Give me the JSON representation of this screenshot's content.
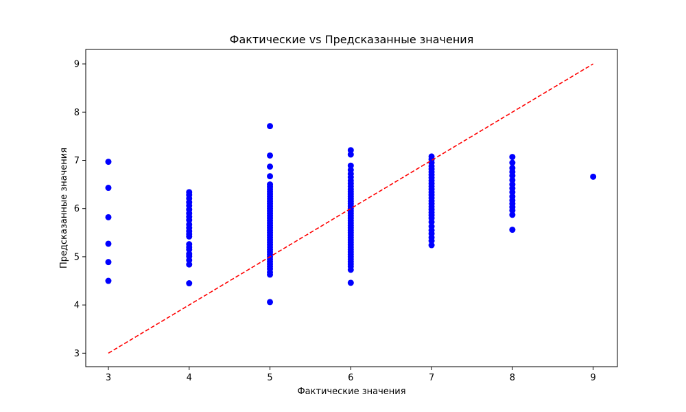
{
  "chart_data": {
    "type": "scatter",
    "title": "Фактические vs Предсказанные значения",
    "xlabel": "Фактические значения",
    "ylabel": "Предсказанные значения",
    "xlim": [
      2.72,
      9.3
    ],
    "ylim": [
      2.72,
      9.3
    ],
    "xticks": [
      "3",
      "4",
      "5",
      "6",
      "7",
      "8",
      "9"
    ],
    "yticks": [
      "3",
      "4",
      "5",
      "6",
      "7",
      "8",
      "9"
    ],
    "grid": false,
    "point_color": "#0000ff",
    "reference_line_color": "#ff0000",
    "reference_line": {
      "style": "dashed",
      "points": [
        [
          3,
          3
        ],
        [
          9,
          9
        ]
      ]
    },
    "series": [
      {
        "points": [
          [
            3,
            6.97
          ],
          [
            3,
            6.43
          ],
          [
            3,
            5.82
          ],
          [
            3,
            5.27
          ],
          [
            3,
            4.89
          ],
          [
            3,
            4.5
          ],
          [
            4,
            6.34
          ],
          [
            4,
            6.28
          ],
          [
            4,
            6.21
          ],
          [
            4,
            6.13
          ],
          [
            4,
            6.06
          ],
          [
            4,
            5.98
          ],
          [
            4,
            5.9
          ],
          [
            4,
            5.83
          ],
          [
            4,
            5.76
          ],
          [
            4,
            5.67
          ],
          [
            4,
            5.6
          ],
          [
            4,
            5.53
          ],
          [
            4,
            5.47
          ],
          [
            4,
            5.42
          ],
          [
            4,
            5.26
          ],
          [
            4,
            5.2
          ],
          [
            4,
            5.15
          ],
          [
            4,
            5.06
          ],
          [
            4,
            5.01
          ],
          [
            4,
            4.93
          ],
          [
            4,
            4.84
          ],
          [
            4,
            4.45
          ],
          [
            5,
            7.71
          ],
          [
            5,
            7.1
          ],
          [
            5,
            6.87
          ],
          [
            5,
            6.67
          ],
          [
            5,
            6.5
          ],
          [
            5,
            6.45
          ],
          [
            5,
            6.4
          ],
          [
            5,
            6.35
          ],
          [
            5,
            6.3
          ],
          [
            5,
            6.25
          ],
          [
            5,
            6.2
          ],
          [
            5,
            6.15
          ],
          [
            5,
            6.1
          ],
          [
            5,
            6.05
          ],
          [
            5,
            6.0
          ],
          [
            5,
            5.95
          ],
          [
            5,
            5.9
          ],
          [
            5,
            5.85
          ],
          [
            5,
            5.8
          ],
          [
            5,
            5.75
          ],
          [
            5,
            5.7
          ],
          [
            5,
            5.65
          ],
          [
            5,
            5.6
          ],
          [
            5,
            5.55
          ],
          [
            5,
            5.5
          ],
          [
            5,
            5.45
          ],
          [
            5,
            5.4
          ],
          [
            5,
            5.35
          ],
          [
            5,
            5.3
          ],
          [
            5,
            5.25
          ],
          [
            5,
            5.2
          ],
          [
            5,
            5.15
          ],
          [
            5,
            5.1
          ],
          [
            5,
            5.05
          ],
          [
            5,
            5.0
          ],
          [
            5,
            4.95
          ],
          [
            5,
            4.9
          ],
          [
            5,
            4.85
          ],
          [
            5,
            4.8
          ],
          [
            5,
            4.75
          ],
          [
            5,
            4.68
          ],
          [
            5,
            4.63
          ],
          [
            5,
            4.06
          ],
          [
            6,
            7.21
          ],
          [
            6,
            7.12
          ],
          [
            6,
            6.89
          ],
          [
            6,
            6.8
          ],
          [
            6,
            6.72
          ],
          [
            6,
            6.65
          ],
          [
            6,
            6.58
          ],
          [
            6,
            6.52
          ],
          [
            6,
            6.46
          ],
          [
            6,
            6.4
          ],
          [
            6,
            6.35
          ],
          [
            6,
            6.3
          ],
          [
            6,
            6.25
          ],
          [
            6,
            6.2
          ],
          [
            6,
            6.15
          ],
          [
            6,
            6.1
          ],
          [
            6,
            6.05
          ],
          [
            6,
            6.0
          ],
          [
            6,
            5.95
          ],
          [
            6,
            5.9
          ],
          [
            6,
            5.85
          ],
          [
            6,
            5.8
          ],
          [
            6,
            5.75
          ],
          [
            6,
            5.7
          ],
          [
            6,
            5.65
          ],
          [
            6,
            5.6
          ],
          [
            6,
            5.55
          ],
          [
            6,
            5.5
          ],
          [
            6,
            5.45
          ],
          [
            6,
            5.4
          ],
          [
            6,
            5.35
          ],
          [
            6,
            5.3
          ],
          [
            6,
            5.25
          ],
          [
            6,
            5.2
          ],
          [
            6,
            5.15
          ],
          [
            6,
            5.1
          ],
          [
            6,
            5.05
          ],
          [
            6,
            5.0
          ],
          [
            6,
            4.95
          ],
          [
            6,
            4.9
          ],
          [
            6,
            4.85
          ],
          [
            6,
            4.8
          ],
          [
            6,
            4.73
          ],
          [
            6,
            4.46
          ],
          [
            7,
            7.08
          ],
          [
            7,
            7.02
          ],
          [
            7,
            6.95
          ],
          [
            7,
            6.88
          ],
          [
            7,
            6.82
          ],
          [
            7,
            6.76
          ],
          [
            7,
            6.7
          ],
          [
            7,
            6.64
          ],
          [
            7,
            6.58
          ],
          [
            7,
            6.52
          ],
          [
            7,
            6.46
          ],
          [
            7,
            6.4
          ],
          [
            7,
            6.34
          ],
          [
            7,
            6.28
          ],
          [
            7,
            6.22
          ],
          [
            7,
            6.16
          ],
          [
            7,
            6.1
          ],
          [
            7,
            6.04
          ],
          [
            7,
            5.98
          ],
          [
            7,
            5.92
          ],
          [
            7,
            5.86
          ],
          [
            7,
            5.8
          ],
          [
            7,
            5.72
          ],
          [
            7,
            5.63
          ],
          [
            7,
            5.55
          ],
          [
            7,
            5.48
          ],
          [
            7,
            5.4
          ],
          [
            7,
            5.33
          ],
          [
            7,
            5.24
          ],
          [
            8,
            7.07
          ],
          [
            8,
            6.95
          ],
          [
            8,
            6.84
          ],
          [
            8,
            6.76
          ],
          [
            8,
            6.68
          ],
          [
            8,
            6.59
          ],
          [
            8,
            6.5
          ],
          [
            8,
            6.42
          ],
          [
            8,
            6.34
          ],
          [
            8,
            6.25
          ],
          [
            8,
            6.17
          ],
          [
            8,
            6.1
          ],
          [
            8,
            6.03
          ],
          [
            8,
            5.96
          ],
          [
            8,
            5.87
          ],
          [
            8,
            5.56
          ],
          [
            9,
            6.66
          ]
        ]
      }
    ]
  }
}
